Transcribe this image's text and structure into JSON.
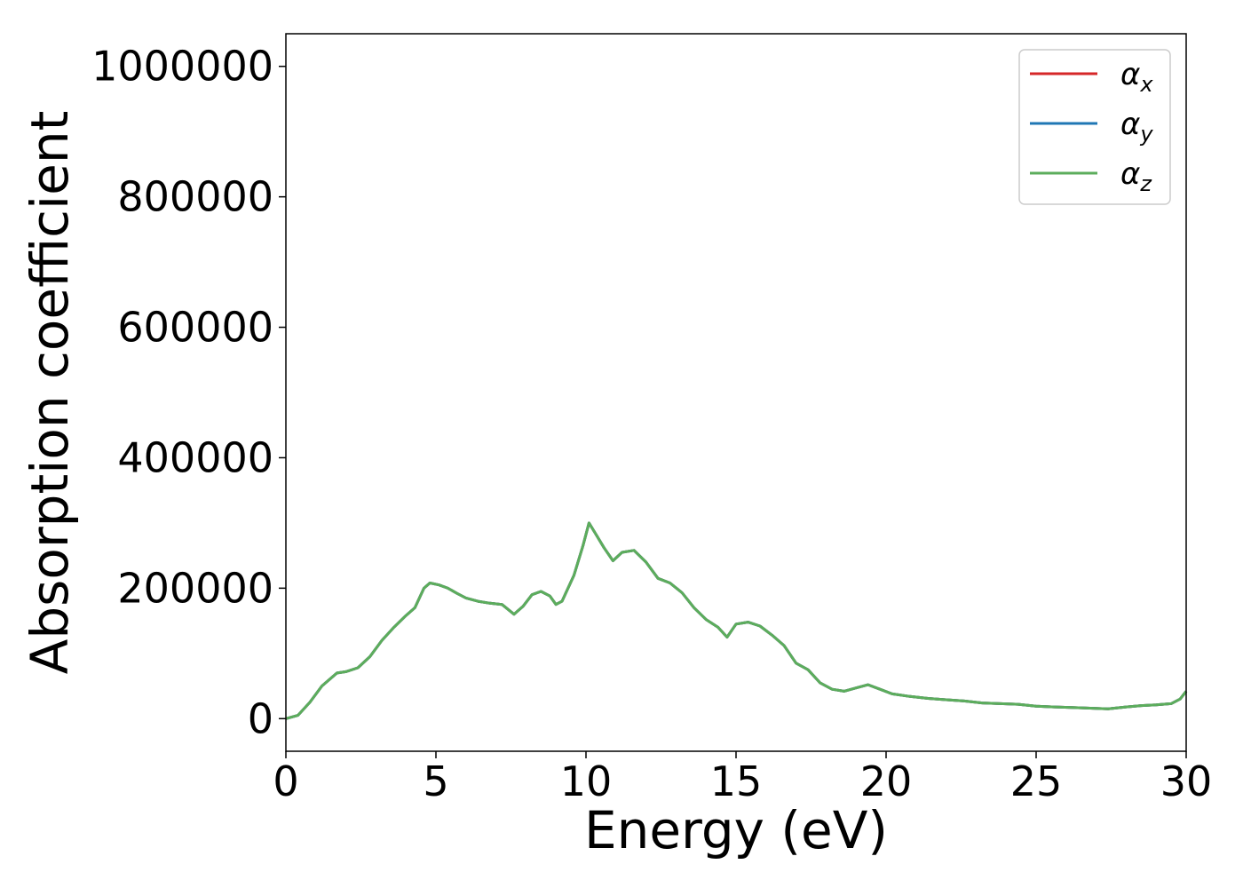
{
  "chart_data": {
    "type": "line",
    "xlabel": "Energy (eV)",
    "ylabel": "Absorption coefficient",
    "xlim": [
      0,
      30
    ],
    "ylim": [
      -50000,
      1050000
    ],
    "xticks": [
      0,
      5,
      10,
      15,
      20,
      25,
      30
    ],
    "xtick_labels": [
      "0",
      "5",
      "10",
      "15",
      "20",
      "25",
      "30"
    ],
    "yticks": [
      0,
      200000,
      400000,
      600000,
      800000,
      1000000
    ],
    "ytick_labels": [
      "0",
      "200000",
      "400000",
      "600000",
      "800000",
      "1000000"
    ],
    "grid": false,
    "legend_position": "top-right",
    "x": [
      0,
      0.4,
      0.8,
      1.2,
      1.7,
      2.0,
      2.4,
      2.8,
      3.2,
      3.6,
      4.0,
      4.3,
      4.6,
      4.8,
      5.1,
      5.4,
      5.7,
      6.0,
      6.4,
      6.8,
      7.2,
      7.6,
      7.9,
      8.2,
      8.5,
      8.8,
      9.0,
      9.2,
      9.6,
      9.9,
      10.1,
      10.3,
      10.6,
      10.9,
      11.2,
      11.6,
      12.0,
      12.4,
      12.8,
      13.2,
      13.6,
      14.0,
      14.4,
      14.7,
      15.0,
      15.4,
      15.8,
      16.2,
      16.6,
      17.0,
      17.4,
      17.8,
      18.2,
      18.6,
      19.0,
      19.4,
      19.8,
      20.2,
      20.8,
      21.4,
      22.0,
      22.6,
      23.2,
      23.8,
      24.4,
      25.0,
      25.6,
      26.2,
      26.8,
      27.4,
      28.0,
      28.5,
      29.0,
      29.5,
      29.8,
      30.0
    ],
    "series": [
      {
        "name": "αx",
        "color": "#d62728",
        "values": [
          0,
          5000,
          25000,
          50000,
          70000,
          72000,
          78000,
          95000,
          120000,
          140000,
          158000,
          170000,
          200000,
          208000,
          205000,
          200000,
          192000,
          185000,
          180000,
          177000,
          175000,
          160000,
          172000,
          190000,
          195000,
          188000,
          175000,
          180000,
          220000,
          265000,
          300000,
          285000,
          262000,
          242000,
          255000,
          258000,
          240000,
          215000,
          208000,
          193000,
          170000,
          152000,
          140000,
          125000,
          145000,
          148000,
          142000,
          128000,
          112000,
          85000,
          75000,
          55000,
          45000,
          42000,
          47000,
          52000,
          45000,
          38000,
          34000,
          31000,
          29000,
          27000,
          24000,
          23000,
          22000,
          19000,
          18000,
          17000,
          16000,
          15000,
          18000,
          20000,
          21000,
          23000,
          30000,
          42000
        ]
      },
      {
        "name": "αy",
        "color": "#1f77b4",
        "values": [
          0,
          5000,
          25000,
          50000,
          70000,
          72000,
          78000,
          95000,
          120000,
          140000,
          158000,
          170000,
          200000,
          208000,
          205000,
          200000,
          192000,
          185000,
          180000,
          177000,
          175000,
          160000,
          172000,
          190000,
          195000,
          188000,
          175000,
          180000,
          220000,
          265000,
          300000,
          285000,
          262000,
          242000,
          255000,
          258000,
          240000,
          215000,
          208000,
          193000,
          170000,
          152000,
          140000,
          125000,
          145000,
          148000,
          142000,
          128000,
          112000,
          85000,
          75000,
          55000,
          45000,
          42000,
          47000,
          52000,
          45000,
          38000,
          34000,
          31000,
          29000,
          27000,
          24000,
          23000,
          22000,
          19000,
          18000,
          17000,
          16000,
          15000,
          18000,
          20000,
          21000,
          23000,
          30000,
          42000
        ]
      },
      {
        "name": "αz",
        "color": "#5cad5c",
        "values": [
          0,
          5000,
          25000,
          50000,
          70000,
          72000,
          78000,
          95000,
          120000,
          140000,
          158000,
          170000,
          200000,
          208000,
          205000,
          200000,
          192000,
          185000,
          180000,
          177000,
          175000,
          160000,
          172000,
          190000,
          195000,
          188000,
          175000,
          180000,
          220000,
          265000,
          300000,
          285000,
          262000,
          242000,
          255000,
          258000,
          240000,
          215000,
          208000,
          193000,
          170000,
          152000,
          140000,
          125000,
          145000,
          148000,
          142000,
          128000,
          112000,
          85000,
          75000,
          55000,
          45000,
          42000,
          47000,
          52000,
          45000,
          38000,
          34000,
          31000,
          29000,
          27000,
          24000,
          23000,
          22000,
          19000,
          18000,
          17000,
          16000,
          15000,
          18000,
          20000,
          21000,
          23000,
          30000,
          42000
        ]
      }
    ],
    "legend": [
      {
        "symbol": "α",
        "subscript": "x"
      },
      {
        "symbol": "α",
        "subscript": "y"
      },
      {
        "symbol": "α",
        "subscript": "z"
      }
    ]
  }
}
